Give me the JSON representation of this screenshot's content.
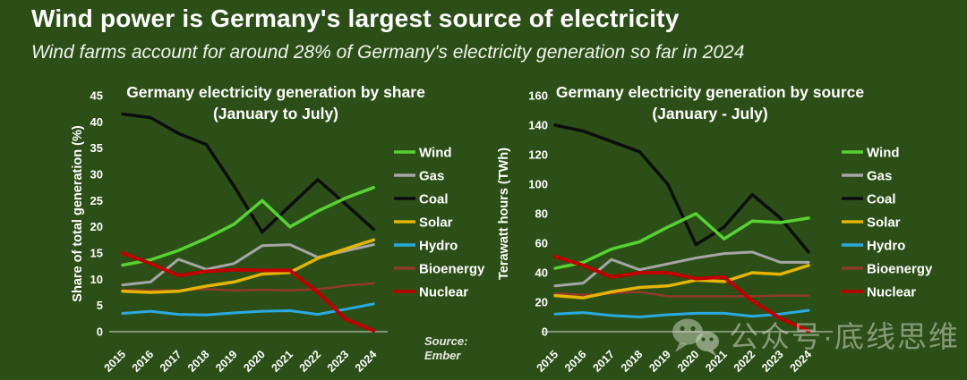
{
  "page": {
    "title": "Wind power is Germany's largest source of electricity",
    "subtitle": "Wind farms account for around 28% of Germany's electricity generation so far in 2024",
    "source_label": "Source:",
    "source_value": "Ember",
    "watermark_text": "公众号·底线思维"
  },
  "colors": {
    "background": "#2B4F16",
    "text": "#FFFFFF",
    "axis_line": "#D9D9D9",
    "source_text": "#E8E8E2",
    "watermark": "rgba(207,217,200,0.55)",
    "wind": "#56D232",
    "gas": "#A6A6A6",
    "coal": "#0D0D0D",
    "solar": "#E4B400",
    "hydro": "#2BAAE1",
    "bioenergy": "#8F3A28",
    "nuclear": "#C00000"
  },
  "chart_data": [
    {
      "type": "line",
      "title": "Germany electricity generation by share",
      "subtitle": "(January to July)",
      "ylabel": "Share of total generation (%)",
      "ylim": [
        0,
        45
      ],
      "ytick_step": 5,
      "grid": false,
      "legend_position": "right",
      "x": [
        "2015",
        "2016",
        "2017",
        "2018",
        "2019",
        "2020",
        "2021",
        "2022",
        "2023",
        "2024"
      ],
      "series": [
        {
          "name": "Wind",
          "color": "#56D232",
          "z": 5,
          "values": [
            12.7,
            13.7,
            15.5,
            17.8,
            20.5,
            25,
            20,
            23,
            25.5,
            27.5
          ]
        },
        {
          "name": "Gas",
          "color": "#A6A6A6",
          "z": 0,
          "values": [
            8.9,
            9.5,
            13.8,
            11.9,
            13,
            16.4,
            16.6,
            14.2,
            15.4,
            16.6
          ]
        },
        {
          "name": "Coal",
          "color": "#0D0D0D",
          "z": 4,
          "values": [
            41.5,
            40.8,
            37.8,
            35.7,
            27.7,
            19,
            24,
            29,
            24.3,
            19.5
          ]
        },
        {
          "name": "Solar",
          "color": "#E4B400",
          "z": 3,
          "values": [
            7.7,
            7.5,
            7.7,
            8.7,
            9.5,
            11,
            11.3,
            14,
            15.8,
            17.5
          ]
        },
        {
          "name": "Hydro",
          "color": "#2BAAE1",
          "z": 2,
          "values": [
            3.5,
            3.9,
            3.3,
            3.2,
            3.6,
            3.9,
            4,
            3.3,
            4.3,
            5.3
          ]
        },
        {
          "name": "Bioenergy",
          "color": "#8F3A28",
          "z": 1,
          "values": [
            8,
            7.9,
            7.9,
            8.1,
            7.9,
            8,
            7.9,
            8.1,
            8.8,
            9.2
          ]
        },
        {
          "name": "Nuclear",
          "color": "#C00000",
          "z": 6,
          "values": [
            15,
            13,
            10.7,
            11.5,
            11.8,
            11.7,
            11.7,
            7.5,
            2.4,
            0.2
          ]
        }
      ]
    },
    {
      "type": "line",
      "title": "Germany electricity generation by source",
      "subtitle": "(January - July)",
      "ylabel": "Terawatt hours (TWh)",
      "ylim": [
        0,
        160
      ],
      "ytick_step": 20,
      "grid": false,
      "legend_position": "right",
      "x": [
        "2015",
        "2016",
        "2017",
        "2018",
        "2019",
        "2020",
        "2021",
        "2022",
        "2023",
        "2024"
      ],
      "series": [
        {
          "name": "Wind",
          "color": "#56D232",
          "z": 5,
          "values": [
            43,
            47,
            56,
            61,
            71,
            80,
            63,
            75,
            74,
            77
          ]
        },
        {
          "name": "Gas",
          "color": "#A6A6A6",
          "z": 0,
          "values": [
            31,
            33,
            49,
            42,
            46,
            50,
            53,
            54,
            47,
            47
          ]
        },
        {
          "name": "Coal",
          "color": "#0D0D0D",
          "z": 4,
          "values": [
            140,
            136,
            129,
            122,
            100,
            59,
            71,
            93,
            77,
            54
          ]
        },
        {
          "name": "Solar",
          "color": "#E4B400",
          "z": 3,
          "values": [
            24.5,
            23,
            27,
            30,
            31,
            35,
            34,
            40,
            39,
            45
          ]
        },
        {
          "name": "Hydro",
          "color": "#2BAAE1",
          "z": 2,
          "values": [
            12,
            13,
            11,
            10,
            11.5,
            12.5,
            12.5,
            10.5,
            12,
            14.5
          ]
        },
        {
          "name": "Bioenergy",
          "color": "#8F3A28",
          "z": 1,
          "values": [
            26,
            25,
            26,
            27,
            24,
            24,
            24,
            24,
            24.5,
            24.5
          ]
        },
        {
          "name": "Nuclear",
          "color": "#C00000",
          "z": 6,
          "values": [
            51,
            45,
            37,
            40,
            40,
            36,
            37,
            21,
            9,
            0.5
          ]
        }
      ]
    }
  ]
}
